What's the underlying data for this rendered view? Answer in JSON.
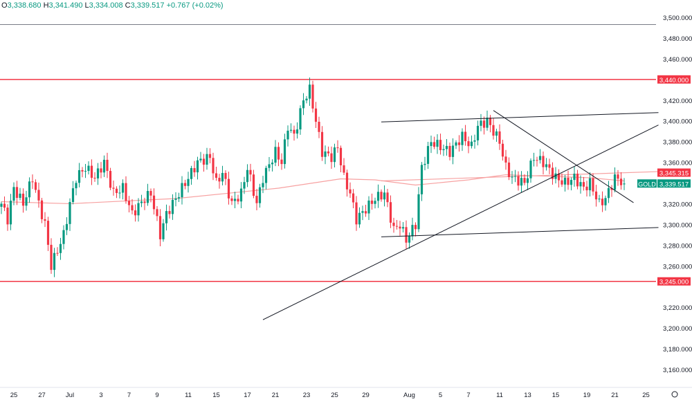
{
  "legend": {
    "o_label": "O",
    "o": "3,338.680",
    "h_label": "H",
    "h": "3,341.490",
    "l_label": "L",
    "l": "3,334.008",
    "c_label": "C",
    "c": "3,339.517",
    "change": "+0.767 (+0.02%)"
  },
  "colors": {
    "up": "#089981",
    "down": "#f23645",
    "level": "#f23645",
    "ma": "#f7a1a1",
    "trend": "#131722"
  },
  "chart_data": {
    "type": "candlestick",
    "symbol": "GOLD",
    "last_price": "3,339.517",
    "ma_price": "3,345.315",
    "ylim": [
      3150,
      3510
    ],
    "y_ticks": [
      "3,500.000",
      "3,480.000",
      "3,460.000",
      "3,420.000",
      "3,400.000",
      "3,380.000",
      "3,360.000",
      "3,320.000",
      "3,300.000",
      "3,280.000",
      "3,260.000",
      "3,220.000",
      "3,200.000",
      "3,180.000",
      "3,160.000"
    ],
    "y_tick_values": [
      3500,
      3480,
      3460,
      3420,
      3400,
      3380,
      3360,
      3320,
      3300,
      3280,
      3260,
      3220,
      3200,
      3180,
      3160
    ],
    "x_ticks": [
      {
        "label": "25",
        "bar": 4
      },
      {
        "label": "27",
        "bar": 13
      },
      {
        "label": "Jul",
        "bar": 22
      },
      {
        "label": "3",
        "bar": 32
      },
      {
        "label": "7",
        "bar": 41
      },
      {
        "label": "9",
        "bar": 50
      },
      {
        "label": "11",
        "bar": 60
      },
      {
        "label": "15",
        "bar": 69
      },
      {
        "label": "17",
        "bar": 79
      },
      {
        "label": "21",
        "bar": 88
      },
      {
        "label": "23",
        "bar": 98
      },
      {
        "label": "25",
        "bar": 107
      },
      {
        "label": "29",
        "bar": 117
      },
      {
        "label": "Aug",
        "bar": 131
      },
      {
        "label": "5",
        "bar": 141
      },
      {
        "label": "7",
        "bar": 150
      },
      {
        "label": "11",
        "bar": 160
      },
      {
        "label": "13",
        "bar": 169
      },
      {
        "label": "15",
        "bar": 178
      },
      {
        "label": "19",
        "bar": 188
      },
      {
        "label": "21",
        "bar": 197
      },
      {
        "label": "25",
        "bar": 207
      }
    ],
    "close_anchors": [
      [
        0,
        3320
      ],
      [
        2,
        3305
      ],
      [
        4,
        3335
      ],
      [
        7,
        3320
      ],
      [
        10,
        3345
      ],
      [
        12,
        3320
      ],
      [
        14,
        3300
      ],
      [
        16,
        3260
      ],
      [
        18,
        3275
      ],
      [
        20,
        3290
      ],
      [
        22,
        3320
      ],
      [
        24,
        3345
      ],
      [
        27,
        3355
      ],
      [
        30,
        3345
      ],
      [
        33,
        3360
      ],
      [
        36,
        3330
      ],
      [
        39,
        3335
      ],
      [
        42,
        3310
      ],
      [
        46,
        3325
      ],
      [
        48,
        3330
      ],
      [
        51,
        3290
      ],
      [
        53,
        3310
      ],
      [
        57,
        3330
      ],
      [
        60,
        3345
      ],
      [
        63,
        3360
      ],
      [
        67,
        3365
      ],
      [
        69,
        3340
      ],
      [
        71,
        3350
      ],
      [
        74,
        3320
      ],
      [
        77,
        3330
      ],
      [
        79,
        3355
      ],
      [
        82,
        3320
      ],
      [
        84,
        3345
      ],
      [
        88,
        3370
      ],
      [
        90,
        3360
      ],
      [
        92,
        3395
      ],
      [
        94,
        3385
      ],
      [
        97,
        3420
      ],
      [
        99,
        3430
      ],
      [
        101,
        3400
      ],
      [
        103,
        3370
      ],
      [
        106,
        3365
      ],
      [
        108,
        3375
      ],
      [
        110,
        3345
      ],
      [
        112,
        3330
      ],
      [
        114,
        3305
      ],
      [
        117,
        3315
      ],
      [
        120,
        3325
      ],
      [
        123,
        3330
      ],
      [
        126,
        3295
      ],
      [
        128,
        3300
      ],
      [
        130,
        3285
      ],
      [
        133,
        3300
      ],
      [
        135,
        3355
      ],
      [
        138,
        3380
      ],
      [
        141,
        3375
      ],
      [
        144,
        3370
      ],
      [
        148,
        3385
      ],
      [
        151,
        3375
      ],
      [
        153,
        3395
      ],
      [
        156,
        3400
      ],
      [
        158,
        3390
      ],
      [
        160,
        3380
      ],
      [
        162,
        3355
      ],
      [
        164,
        3345
      ],
      [
        168,
        3340
      ],
      [
        171,
        3365
      ],
      [
        174,
        3360
      ],
      [
        178,
        3345
      ],
      [
        181,
        3340
      ],
      [
        184,
        3345
      ],
      [
        187,
        3335
      ],
      [
        189,
        3340
      ],
      [
        192,
        3320
      ],
      [
        194,
        3325
      ],
      [
        197,
        3345
      ],
      [
        199,
        3342
      ],
      [
        200,
        3339.5
      ]
    ],
    "ma_points": [
      [
        0,
        3322
      ],
      [
        22,
        3320
      ],
      [
        56,
        3325
      ],
      [
        89,
        3335
      ],
      [
        109,
        3344
      ],
      [
        120,
        3343
      ],
      [
        133,
        3338
      ],
      [
        150,
        3343
      ],
      [
        162,
        3348
      ],
      [
        189,
        3345
      ],
      [
        200,
        3342
      ]
    ],
    "levels": [
      {
        "price": 3440,
        "label": "3,440.000"
      },
      {
        "price": 3245,
        "label": "3,245.000"
      }
    ],
    "grey_level": 3493,
    "trendlines": [
      {
        "from": [
          84,
          3208
        ],
        "to": [
          211,
          3396
        ]
      },
      {
        "from": [
          122,
          3399
        ],
        "to": [
          211,
          3408
        ]
      },
      {
        "from": [
          122,
          3288
        ],
        "to": [
          211,
          3297
        ]
      },
      {
        "from": [
          158,
          3410
        ],
        "to": [
          203,
          3321
        ]
      }
    ],
    "ma_flat_line": {
      "from": [
        122,
        3342
      ],
      "to": [
        211,
        3351
      ]
    }
  }
}
